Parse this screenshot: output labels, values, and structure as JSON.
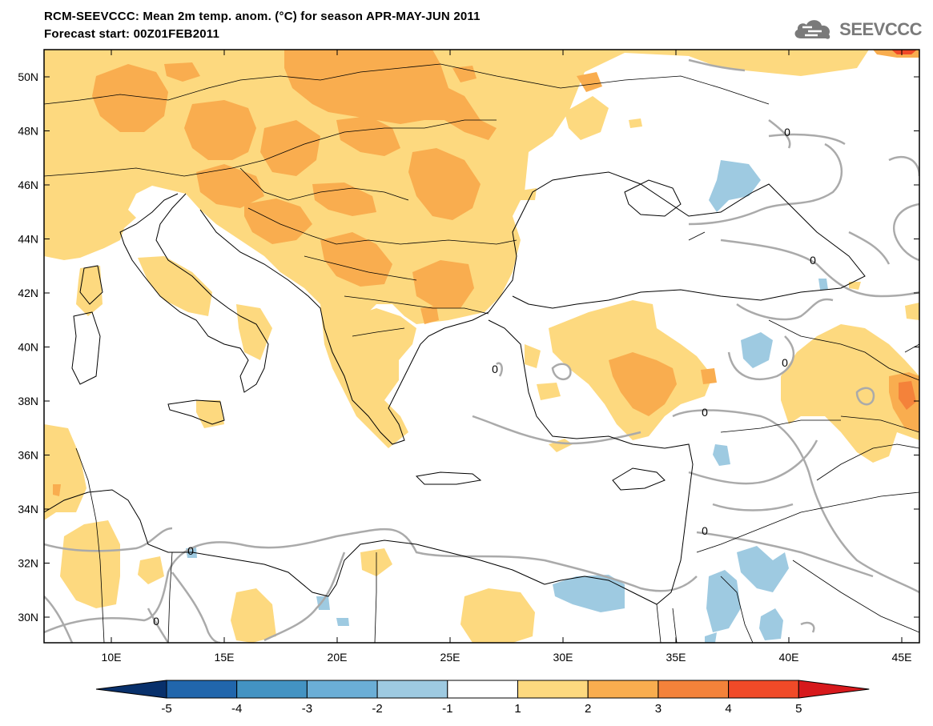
{
  "header": {
    "title_line1": "RCM-SEEVCCC: Mean 2m temp. anom. (°C) for season APR-MAY-JUN 2011",
    "title_line2": "Forecast start: 00Z01FEB2011"
  },
  "logo": {
    "text": "SEEVCCC",
    "icon": "cloud-logo-icon"
  },
  "map": {
    "lat_labels": [
      "50N",
      "48N",
      "46N",
      "44N",
      "42N",
      "40N",
      "38N",
      "36N",
      "34N",
      "32N",
      "30N"
    ],
    "lon_labels": [
      "10E",
      "15E",
      "20E",
      "25E",
      "30E",
      "35E",
      "40E",
      "45E"
    ],
    "contour_label": "0",
    "colors": {
      "plus1_2": "#fdd97f",
      "plus2_3": "#f9ad4f",
      "minus1_2": "#9ecae1",
      "contour": "#aaaaaa",
      "coast": "#000000"
    }
  },
  "colorbar": {
    "labels": [
      "-5",
      "-4",
      "-3",
      "-2",
      "-1",
      "1",
      "2",
      "3",
      "4",
      "5"
    ],
    "colors": [
      "#08306b",
      "#2166ac",
      "#4393c3",
      "#6baed6",
      "#9ecae1",
      "#ffffff",
      "#fdd97f",
      "#f9ad4f",
      "#f4823a",
      "#f04a28",
      "#d7191c"
    ]
  }
}
